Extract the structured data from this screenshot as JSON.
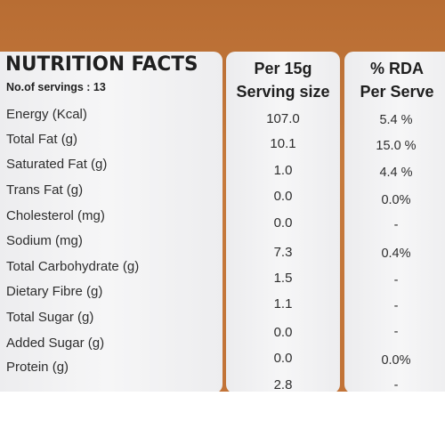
{
  "header": {
    "title": "NUTRITION FACTS",
    "servings": "No.of servings : 13",
    "col_per_line1": "Per 15g",
    "col_per_line2": "Serving size",
    "col_rda_line1": "% RDA",
    "col_rda_line2": "Per Serve"
  },
  "rows": [
    {
      "label": "Energy (Kcal)",
      "value": "107.0",
      "rda": "5.4 %"
    },
    {
      "label": "Total Fat (g)",
      "value": "10.1",
      "rda": "15.0 %"
    },
    {
      "label": "Saturated Fat (g)",
      "value": "1.0",
      "rda": "4.4 %"
    },
    {
      "label": "Trans Fat (g)",
      "value": "0.0",
      "rda": "0.0%"
    },
    {
      "label": "Cholesterol (mg)",
      "value": "0.0",
      "rda": "-"
    },
    {
      "label": "Sodium (mg)",
      "value": "7.3",
      "rda": "0.4%"
    },
    {
      "label": "Total Carbohydrate (g)",
      "value": "1.5",
      "rda": "-"
    },
    {
      "label": "Dietary Fibre (g)",
      "value": "1.1",
      "rda": "-"
    },
    {
      "label": "Total Sugar (g)",
      "value": "0.0",
      "rda": "-"
    },
    {
      "label": "Added Sugar (g)",
      "value": "0.0",
      "rda": "0.0%"
    },
    {
      "label": "Protein (g)",
      "value": "2.8",
      "rda": "-"
    }
  ],
  "colors": {
    "background": "#c67a3d",
    "panel": "#f2f2f3",
    "text": "#2a2a2a"
  }
}
